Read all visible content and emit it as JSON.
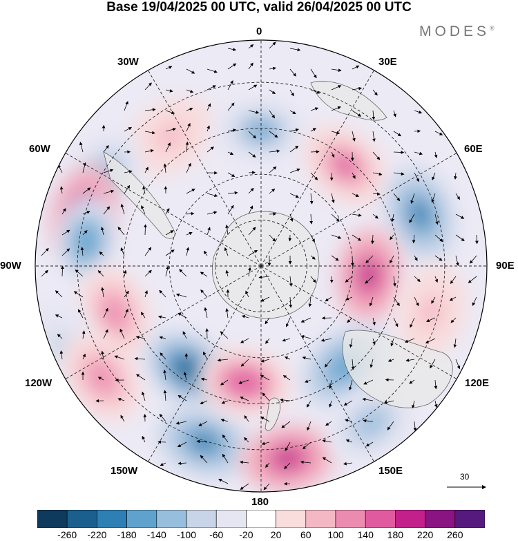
{
  "title": "Base 19/04/2025 00 UTC, valid 26/04/2025 00 UTC",
  "brand": {
    "text": "MODES",
    "mark": "®"
  },
  "longitude_labels": {
    "n0": "0",
    "n30e": "30E",
    "n60e": "60E",
    "n90e": "90E",
    "n120e": "120E",
    "n150e": "150E",
    "n180": "180",
    "n150w": "150W",
    "n120w": "120W",
    "n90w": "90W",
    "n60w": "60W",
    "n30w": "30W"
  },
  "reference_vector": {
    "label": "30"
  },
  "colorbar": {
    "colors": [
      "#0e3a5e",
      "#1a5f8e",
      "#2d7fb4",
      "#5fa2cd",
      "#98bedd",
      "#c8d4e8",
      "#e6e6f3",
      "#ffffff",
      "#f9dcdc",
      "#f4b7c4",
      "#ec8bb0",
      "#e05aa0",
      "#c3208c",
      "#8a1482",
      "#561a7e"
    ],
    "ticks": [
      "-260",
      "-220",
      "-180",
      "-140",
      "-100",
      "-60",
      "-20",
      "20",
      "60",
      "100",
      "140",
      "180",
      "220",
      "260"
    ]
  },
  "anomalies": [
    {
      "lon": -35,
      "r": 0.7,
      "value": 60
    },
    {
      "lon": 0,
      "r": 0.6,
      "value": -150
    },
    {
      "lon": 40,
      "r": 0.58,
      "value": 160
    },
    {
      "lon": -60,
      "r": 0.8,
      "value": -130
    },
    {
      "lon": -73,
      "r": 0.82,
      "value": 220
    },
    {
      "lon": -82,
      "r": 0.78,
      "value": -170
    },
    {
      "lon": 72,
      "r": 0.74,
      "value": -200
    },
    {
      "lon": 95,
      "r": 0.48,
      "value": 180
    },
    {
      "lon": 105,
      "r": 0.78,
      "value": 60
    },
    {
      "lon": -108,
      "r": 0.68,
      "value": 120
    },
    {
      "lon": -112,
      "r": 0.95,
      "value": -80
    },
    {
      "lon": -145,
      "r": 0.56,
      "value": -250
    },
    {
      "lon": -125,
      "r": 0.86,
      "value": 100
    },
    {
      "lon": -162,
      "r": 0.82,
      "value": -190
    },
    {
      "lon": -172,
      "r": 0.52,
      "value": 170
    },
    {
      "lon": 172,
      "r": 0.86,
      "value": 180
    },
    {
      "lon": 140,
      "r": 0.58,
      "value": -180
    },
    {
      "lon": 145,
      "r": 0.85,
      "value": -120
    }
  ]
}
